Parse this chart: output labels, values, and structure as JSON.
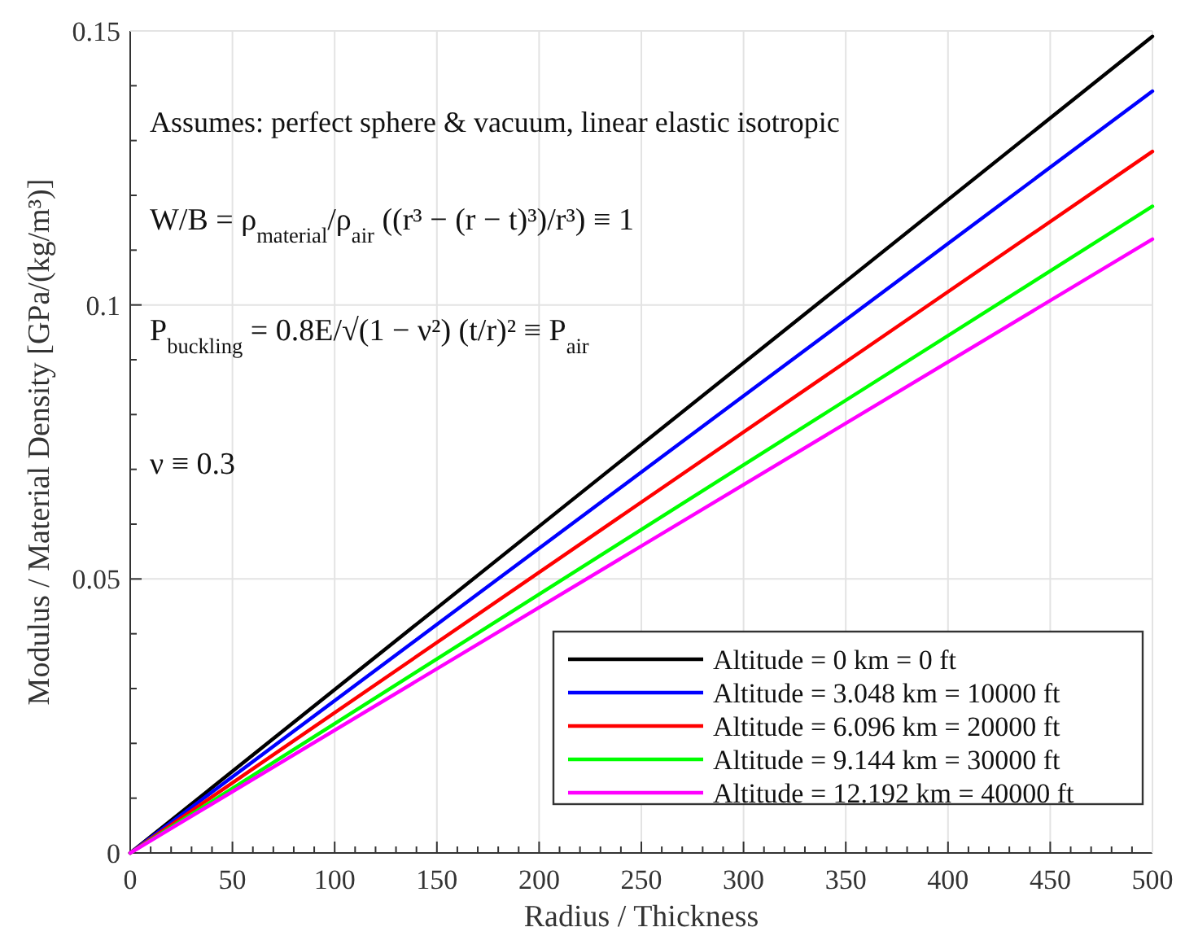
{
  "chart_data": {
    "type": "line",
    "xlabel": "Radius / Thickness",
    "ylabel": "Modulus / Material Density [GPa/(kg/m³)]",
    "xlim": [
      0,
      500
    ],
    "ylim": [
      0,
      0.15
    ],
    "xticks": [
      0,
      {
        "value": 10,
        "label": null
      },
      {
        "value": 20,
        "label": null
      },
      {
        "value": 30,
        "label": null
      },
      {
        "value": 40,
        "label": null
      },
      50,
      {
        "value": 60,
        "label": null
      },
      {
        "value": 70,
        "label": null
      },
      {
        "value": 80,
        "label": null
      },
      {
        "value": 90,
        "label": null
      },
      100,
      {
        "value": 110,
        "label": null
      },
      {
        "value": 120,
        "label": null
      },
      {
        "value": 130,
        "label": null
      },
      {
        "value": 140,
        "label": null
      },
      150,
      {
        "value": 160,
        "label": null
      },
      {
        "value": 170,
        "label": null
      },
      {
        "value": 180,
        "label": null
      },
      {
        "value": 190,
        "label": null
      },
      200,
      {
        "value": 210,
        "label": null
      },
      {
        "value": 220,
        "label": null
      },
      {
        "value": 230,
        "label": null
      },
      {
        "value": 240,
        "label": null
      },
      250,
      {
        "value": 260,
        "label": null
      },
      {
        "value": 270,
        "label": null
      },
      {
        "value": 280,
        "label": null
      },
      {
        "value": 290,
        "label": null
      },
      300,
      {
        "value": 310,
        "label": null
      },
      {
        "value": 320,
        "label": null
      },
      {
        "value": 330,
        "label": null
      },
      {
        "value": 340,
        "label": null
      },
      350,
      {
        "value": 360,
        "label": null
      },
      {
        "value": 370,
        "label": null
      },
      {
        "value": 380,
        "label": null
      },
      {
        "value": 390,
        "label": null
      },
      400,
      {
        "value": 410,
        "label": null
      },
      {
        "value": 420,
        "label": null
      },
      {
        "value": 430,
        "label": null
      },
      {
        "value": 440,
        "label": null
      },
      450,
      {
        "value": 460,
        "label": null
      },
      {
        "value": 470,
        "label": null
      },
      {
        "value": 480,
        "label": null
      },
      {
        "value": 490,
        "label": null
      },
      500
    ],
    "yticks": [
      0,
      {
        "value": 0.01,
        "label": null
      },
      {
        "value": 0.02,
        "label": null
      },
      {
        "value": 0.03,
        "label": null
      },
      {
        "value": 0.04,
        "label": null
      },
      0.05,
      {
        "value": 0.06,
        "label": null
      },
      {
        "value": 0.07,
        "label": null
      },
      {
        "value": 0.08,
        "label": null
      },
      {
        "value": 0.09,
        "label": null
      },
      0.1,
      {
        "value": 0.11,
        "label": null
      },
      {
        "value": 0.12,
        "label": null
      },
      {
        "value": 0.13,
        "label": null
      },
      {
        "value": 0.14,
        "label": null
      },
      0.15
    ],
    "x": [
      0,
      500
    ],
    "series": [
      {
        "name": "Altitude = 0 km = 0 ft",
        "color": "#000000",
        "values": [
          0,
          0.149
        ]
      },
      {
        "name": "Altitude = 3.048 km = 10000 ft",
        "color": "#0000ff",
        "values": [
          0,
          0.139
        ]
      },
      {
        "name": "Altitude = 6.096 km = 20000 ft",
        "color": "#ff0000",
        "values": [
          0,
          0.128
        ]
      },
      {
        "name": "Altitude = 9.144 km = 30000 ft",
        "color": "#00ff00",
        "values": [
          0,
          0.118
        ]
      },
      {
        "name": "Altitude = 12.192 km = 40000 ft",
        "color": "#ff00ff",
        "values": [
          0,
          0.112
        ]
      }
    ],
    "annotations": [
      "Assumes: perfect sphere & vacuum, linear elastic isotropic",
      "W/B = ρ$_{material}$/ρ$_{air}$ ((r³ − (r − t)³)/r³) ≡ 1",
      "P$_{buckling}$ = 0.8E/√(1 − ν²) (t/r)² ≡ P$_{air}$",
      "ν ≡ 0.3"
    ],
    "grid": true,
    "legend": "bottom right",
    "marker": "none",
    "line_style": "solid"
  }
}
